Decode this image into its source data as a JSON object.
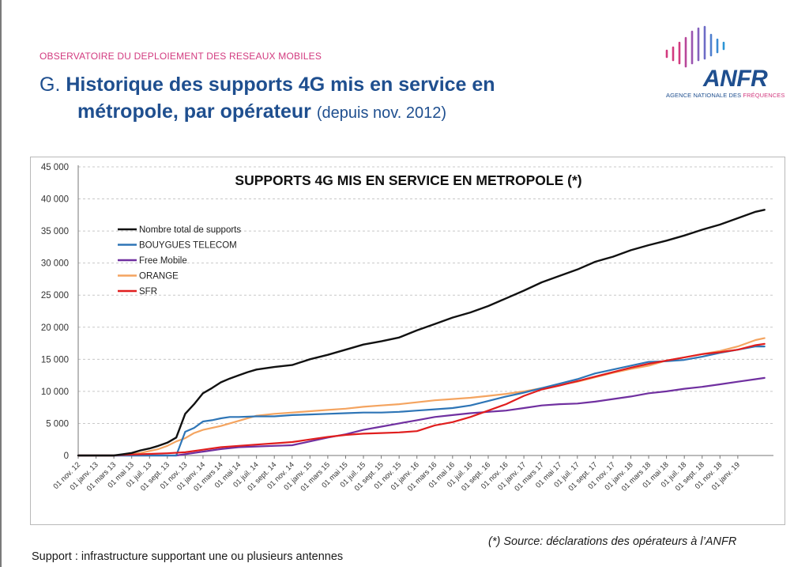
{
  "header": {
    "observatory": "OBSERVATOIRE DU DEPLOIEMENT DES RESEAUX MOBILES",
    "title_prefix": "G. ",
    "title_line1": "Historique des supports 4G mis en service en",
    "title_line2": "métropole, par opérateur",
    "title_sub": "(depuis nov. 2012)"
  },
  "logo": {
    "word": "ANFR",
    "sub_a": "AGENCE NATIONALE DES ",
    "sub_b": "FRÉQUENCES"
  },
  "footer": {
    "source": "(*) Source: déclarations des opérateurs à l’ANFR",
    "note": "Support : infrastructure supportant une ou plusieurs antennes"
  },
  "colors": {
    "accent": "#d23a7f",
    "brand": "#1f4f8f"
  },
  "chart_data": {
    "type": "line",
    "title": "SUPPORTS 4G MIS EN SERVICE EN METROPOLE (*)",
    "xlabel": "",
    "ylabel": "",
    "ylim": [
      0,
      45000
    ],
    "yticks": [
      0,
      5000,
      10000,
      15000,
      20000,
      25000,
      30000,
      35000,
      40000,
      45000
    ],
    "ytick_labels": [
      "0",
      "5 000",
      "10 000",
      "15 000",
      "20 000",
      "25 000",
      "30 000",
      "35 000",
      "40 000",
      "45 000"
    ],
    "grid": true,
    "legend_position": "top-left",
    "x_tick_labels": [
      "01 nov. 12",
      "01 janv. 13",
      "01 mars 13",
      "01 mai 13",
      "01 juil. 13",
      "01 sept. 13",
      "01 nov. 13",
      "01 janv. 14",
      "01 mars 14",
      "01 mai 14",
      "01 juil. 14",
      "01 sept. 14",
      "01 nov. 14",
      "01 janv. 15",
      "01 mars 15",
      "01 mai 15",
      "01 juil. 15",
      "01 sept. 15",
      "01 nov. 15",
      "01 janv. 16",
      "01 mars 16",
      "01 mai 16",
      "01 juil. 16",
      "01 sept. 16",
      "01 nov. 16",
      "01 janv. 17",
      "01 mars 17",
      "01 mai 17",
      "01 juil. 17",
      "01 sept. 17",
      "01 nov. 17",
      "01 janv. 18",
      "01 mars 18",
      "01 mai 18",
      "01 juil. 18",
      "01 sept. 18",
      "01 nov. 18",
      "01 janv. 19"
    ],
    "x_months_start": "nov. 2012",
    "x_months_end": "févr. 2019",
    "series": [
      {
        "name": "Nombre total de supports",
        "color": "#111111",
        "points": [
          [
            0,
            0
          ],
          [
            2,
            0
          ],
          [
            4,
            0
          ],
          [
            5,
            200
          ],
          [
            6,
            400
          ],
          [
            7,
            800
          ],
          [
            8,
            1100
          ],
          [
            9,
            1500
          ],
          [
            10,
            2000
          ],
          [
            11,
            2800
          ],
          [
            12,
            6500
          ],
          [
            13,
            8000
          ],
          [
            14,
            9700
          ],
          [
            15,
            10500
          ],
          [
            16,
            11400
          ],
          [
            17,
            12000
          ],
          [
            18,
            12500
          ],
          [
            19,
            13000
          ],
          [
            20,
            13400
          ],
          [
            22,
            13800
          ],
          [
            24,
            14100
          ],
          [
            26,
            15000
          ],
          [
            28,
            15700
          ],
          [
            30,
            16500
          ],
          [
            32,
            17300
          ],
          [
            34,
            17800
          ],
          [
            36,
            18400
          ],
          [
            38,
            19500
          ],
          [
            40,
            20500
          ],
          [
            42,
            21500
          ],
          [
            44,
            22300
          ],
          [
            46,
            23300
          ],
          [
            48,
            24500
          ],
          [
            50,
            25700
          ],
          [
            52,
            27000
          ],
          [
            54,
            28000
          ],
          [
            56,
            29000
          ],
          [
            58,
            30200
          ],
          [
            60,
            31000
          ],
          [
            62,
            32000
          ],
          [
            64,
            32800
          ],
          [
            66,
            33500
          ],
          [
            68,
            34300
          ],
          [
            70,
            35200
          ],
          [
            72,
            36000
          ],
          [
            74,
            37000
          ],
          [
            76,
            38000
          ],
          [
            77,
            38300
          ]
        ]
      },
      {
        "name": "BOUYGUES TELECOM",
        "color": "#2e75b6",
        "points": [
          [
            0,
            0
          ],
          [
            9,
            0
          ],
          [
            10,
            0
          ],
          [
            11,
            0
          ],
          [
            12,
            3700
          ],
          [
            13,
            4300
          ],
          [
            14,
            5300
          ],
          [
            15,
            5500
          ],
          [
            16,
            5800
          ],
          [
            17,
            6000
          ],
          [
            18,
            6000
          ],
          [
            20,
            6100
          ],
          [
            22,
            6100
          ],
          [
            24,
            6300
          ],
          [
            26,
            6400
          ],
          [
            28,
            6500
          ],
          [
            30,
            6600
          ],
          [
            32,
            6700
          ],
          [
            34,
            6700
          ],
          [
            36,
            6800
          ],
          [
            38,
            7000
          ],
          [
            40,
            7200
          ],
          [
            42,
            7400
          ],
          [
            44,
            7800
          ],
          [
            46,
            8500
          ],
          [
            48,
            9200
          ],
          [
            50,
            9800
          ],
          [
            52,
            10500
          ],
          [
            54,
            11200
          ],
          [
            56,
            11900
          ],
          [
            58,
            12800
          ],
          [
            60,
            13400
          ],
          [
            62,
            14000
          ],
          [
            64,
            14600
          ],
          [
            66,
            14700
          ],
          [
            68,
            14900
          ],
          [
            70,
            15400
          ],
          [
            72,
            16000
          ],
          [
            74,
            16500
          ],
          [
            76,
            17000
          ],
          [
            77,
            17000
          ]
        ]
      },
      {
        "name": "Free Mobile",
        "color": "#7030a0",
        "points": [
          [
            0,
            0
          ],
          [
            9,
            0
          ],
          [
            10,
            0
          ],
          [
            11,
            0
          ],
          [
            12,
            200
          ],
          [
            14,
            600
          ],
          [
            16,
            1000
          ],
          [
            18,
            1300
          ],
          [
            20,
            1400
          ],
          [
            22,
            1500
          ],
          [
            24,
            1600
          ],
          [
            26,
            2200
          ],
          [
            28,
            2800
          ],
          [
            30,
            3300
          ],
          [
            32,
            4000
          ],
          [
            34,
            4500
          ],
          [
            36,
            5000
          ],
          [
            38,
            5500
          ],
          [
            40,
            6000
          ],
          [
            42,
            6300
          ],
          [
            44,
            6600
          ],
          [
            46,
            6800
          ],
          [
            48,
            7000
          ],
          [
            50,
            7400
          ],
          [
            52,
            7800
          ],
          [
            54,
            8000
          ],
          [
            56,
            8100
          ],
          [
            58,
            8400
          ],
          [
            60,
            8800
          ],
          [
            62,
            9200
          ],
          [
            64,
            9700
          ],
          [
            66,
            10000
          ],
          [
            68,
            10400
          ],
          [
            70,
            10700
          ],
          [
            72,
            11100
          ],
          [
            74,
            11500
          ],
          [
            76,
            11900
          ],
          [
            77,
            12100
          ]
        ]
      },
      {
        "name": "ORANGE",
        "color": "#f4a460",
        "points": [
          [
            0,
            0
          ],
          [
            4,
            0
          ],
          [
            5,
            100
          ],
          [
            6,
            200
          ],
          [
            7,
            400
          ],
          [
            8,
            700
          ],
          [
            9,
            1000
          ],
          [
            10,
            1500
          ],
          [
            11,
            2200
          ],
          [
            12,
            2700
          ],
          [
            13,
            3500
          ],
          [
            14,
            4000
          ],
          [
            16,
            4600
          ],
          [
            18,
            5400
          ],
          [
            20,
            6200
          ],
          [
            22,
            6500
          ],
          [
            24,
            6700
          ],
          [
            26,
            6900
          ],
          [
            28,
            7100
          ],
          [
            30,
            7300
          ],
          [
            32,
            7600
          ],
          [
            34,
            7800
          ],
          [
            36,
            8000
          ],
          [
            38,
            8300
          ],
          [
            40,
            8600
          ],
          [
            42,
            8800
          ],
          [
            44,
            9000
          ],
          [
            46,
            9300
          ],
          [
            48,
            9600
          ],
          [
            50,
            10000
          ],
          [
            52,
            10500
          ],
          [
            54,
            11000
          ],
          [
            56,
            11500
          ],
          [
            58,
            12200
          ],
          [
            60,
            12900
          ],
          [
            62,
            13500
          ],
          [
            64,
            14000
          ],
          [
            66,
            14800
          ],
          [
            68,
            15300
          ],
          [
            70,
            15800
          ],
          [
            72,
            16300
          ],
          [
            74,
            17000
          ],
          [
            76,
            18000
          ],
          [
            77,
            18300
          ]
        ]
      },
      {
        "name": "SFR",
        "color": "#e01e1e",
        "points": [
          [
            0,
            0
          ],
          [
            4,
            0
          ],
          [
            5,
            100
          ],
          [
            6,
            150
          ],
          [
            8,
            250
          ],
          [
            10,
            350
          ],
          [
            12,
            500
          ],
          [
            14,
            900
          ],
          [
            16,
            1300
          ],
          [
            18,
            1500
          ],
          [
            20,
            1700
          ],
          [
            22,
            1900
          ],
          [
            24,
            2100
          ],
          [
            26,
            2500
          ],
          [
            28,
            2900
          ],
          [
            30,
            3200
          ],
          [
            32,
            3400
          ],
          [
            34,
            3500
          ],
          [
            36,
            3600
          ],
          [
            38,
            3800
          ],
          [
            40,
            4700
          ],
          [
            42,
            5200
          ],
          [
            44,
            6000
          ],
          [
            46,
            7000
          ],
          [
            48,
            8000
          ],
          [
            50,
            9300
          ],
          [
            52,
            10300
          ],
          [
            54,
            10900
          ],
          [
            56,
            11600
          ],
          [
            58,
            12300
          ],
          [
            60,
            13000
          ],
          [
            62,
            13700
          ],
          [
            64,
            14300
          ],
          [
            66,
            14800
          ],
          [
            68,
            15300
          ],
          [
            70,
            15800
          ],
          [
            72,
            16100
          ],
          [
            74,
            16500
          ],
          [
            76,
            17200
          ],
          [
            77,
            17400
          ]
        ]
      }
    ]
  }
}
